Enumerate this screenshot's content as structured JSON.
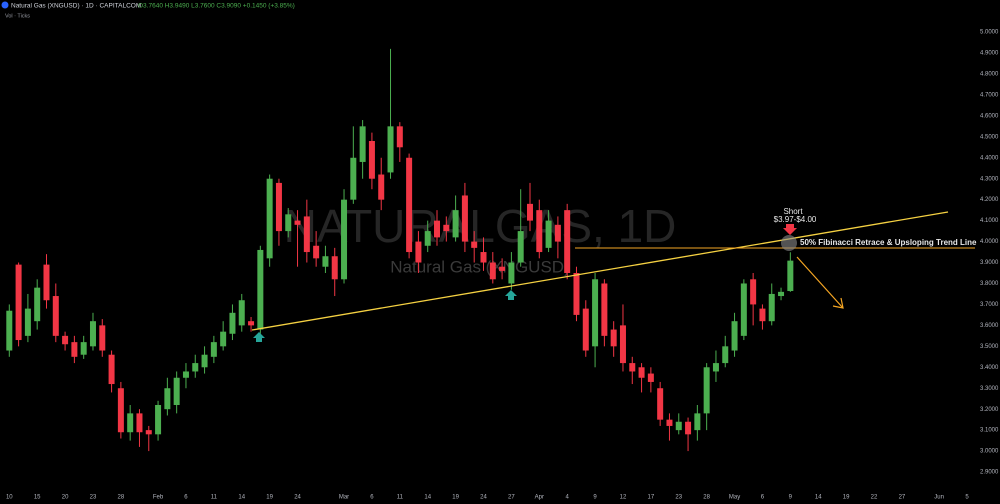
{
  "chart_data": {
    "type": "candlestick",
    "title": "Natural Gas (XNGUSD) · 1D · CAPITALCOM",
    "ohlc_summary": "O3.7640 H3.9490 L3.7600 C3.9090 +0.1450 (+3.85%)",
    "indicator_label": "Vol · Ticks",
    "watermark": "NATURALGAS, 1D",
    "watermark_subtitle": "Natural Gas (XNGUSD)",
    "annotations": [
      "Short",
      "$3.97-$4.00",
      "50% Fibinacci Retrace & Upsloping Trend Line"
    ],
    "up_color": "#4caf50",
    "down_color": "#f23645",
    "grid": false,
    "x": [
      0,
      1,
      2,
      3,
      4,
      5,
      6,
      7,
      8,
      9,
      10,
      11,
      12,
      13,
      14,
      15,
      16,
      17,
      18,
      19,
      20,
      21,
      22,
      23,
      24,
      25,
      26,
      27,
      28,
      29,
      30,
      31,
      32,
      33,
      34,
      35,
      36,
      37,
      38,
      39,
      40,
      41,
      42,
      43,
      44,
      45,
      46,
      47,
      48,
      49,
      50,
      51,
      52,
      53,
      54,
      55,
      56,
      57,
      58,
      59,
      60,
      61,
      62,
      63,
      64,
      65,
      66,
      67,
      68,
      69,
      70,
      71,
      72,
      73,
      74,
      75,
      76,
      77,
      78,
      79,
      80,
      81,
      82,
      83,
      84
    ],
    "open": [
      3.48,
      3.89,
      3.55,
      3.62,
      3.89,
      3.74,
      3.55,
      3.52,
      3.46,
      3.5,
      3.6,
      3.46,
      3.3,
      3.09,
      3.18,
      3.1,
      3.08,
      3.2,
      3.22,
      3.35,
      3.38,
      3.4,
      3.45,
      3.5,
      3.56,
      3.6,
      3.62,
      3.58,
      3.92,
      4.28,
      4.05,
      4.1,
      4.12,
      3.98,
      3.88,
      3.93,
      3.82,
      4.2,
      4.38,
      4.48,
      4.32,
      4.33,
      4.55,
      4.4,
      4.0,
      3.98,
      4.1,
      4.08,
      4.02,
      4.22,
      4.0,
      3.95,
      3.9,
      3.88,
      3.8,
      3.9,
      4.18,
      4.15,
      3.97,
      4.08,
      4.15,
      3.85,
      3.68,
      3.5,
      3.8,
      3.58,
      3.6,
      3.42,
      3.4,
      3.37,
      3.3,
      3.15,
      3.1,
      3.14,
      3.1,
      3.18,
      3.38,
      3.42,
      3.48,
      3.55,
      3.82,
      3.68,
      3.62,
      3.74,
      3.764
    ],
    "high": [
      3.7,
      3.9,
      3.75,
      3.82,
      3.94,
      3.8,
      3.57,
      3.55,
      3.55,
      3.66,
      3.63,
      3.48,
      3.33,
      3.22,
      3.2,
      3.12,
      3.24,
      3.35,
      3.38,
      3.42,
      3.46,
      3.5,
      3.55,
      3.62,
      3.7,
      3.75,
      3.64,
      3.98,
      4.32,
      4.3,
      4.16,
      4.15,
      4.2,
      4.05,
      3.98,
      3.97,
      4.25,
      4.55,
      4.58,
      4.52,
      4.4,
      4.92,
      4.57,
      4.42,
      4.05,
      4.1,
      4.15,
      4.12,
      4.22,
      4.28,
      4.05,
      4.02,
      3.95,
      3.92,
      3.95,
      4.25,
      4.28,
      4.2,
      4.15,
      4.12,
      4.18,
      3.88,
      3.72,
      3.85,
      3.82,
      3.62,
      3.7,
      3.45,
      3.42,
      3.4,
      3.33,
      3.18,
      3.18,
      3.16,
      3.22,
      3.42,
      3.48,
      3.55,
      3.66,
      3.82,
      3.85,
      3.7,
      3.8,
      3.78,
      3.949
    ],
    "low": [
      3.45,
      3.5,
      3.52,
      3.58,
      3.68,
      3.52,
      3.48,
      3.42,
      3.44,
      3.48,
      3.45,
      3.28,
      3.06,
      3.05,
      3.02,
      3.0,
      3.05,
      3.17,
      3.18,
      3.3,
      3.35,
      3.37,
      3.42,
      3.48,
      3.53,
      3.57,
      3.57,
      3.56,
      3.88,
      3.98,
      4.02,
      3.88,
      3.9,
      3.88,
      3.85,
      3.74,
      3.8,
      4.18,
      4.3,
      4.25,
      4.15,
      4.3,
      4.38,
      3.92,
      3.85,
      3.95,
      3.98,
      4.0,
      4.0,
      3.95,
      3.9,
      3.86,
      3.8,
      3.82,
      3.77,
      3.88,
      4.05,
      3.92,
      3.95,
      3.92,
      3.82,
      3.62,
      3.45,
      3.4,
      3.5,
      3.45,
      3.38,
      3.32,
      3.28,
      3.28,
      3.12,
      3.05,
      3.08,
      3.0,
      3.05,
      3.1,
      3.33,
      3.4,
      3.45,
      3.53,
      3.6,
      3.58,
      3.6,
      3.72,
      3.76
    ],
    "close": [
      3.67,
      3.53,
      3.68,
      3.78,
      3.72,
      3.55,
      3.51,
      3.45,
      3.52,
      3.62,
      3.48,
      3.32,
      3.09,
      3.18,
      3.09,
      3.08,
      3.22,
      3.3,
      3.35,
      3.38,
      3.42,
      3.46,
      3.52,
      3.57,
      3.66,
      3.72,
      3.6,
      3.96,
      4.3,
      4.05,
      4.13,
      4.08,
      3.95,
      3.92,
      3.93,
      3.82,
      4.2,
      4.4,
      4.55,
      4.3,
      4.2,
      4.55,
      4.45,
      3.95,
      3.9,
      4.05,
      4.02,
      4.05,
      4.15,
      4.0,
      3.97,
      3.9,
      3.82,
      3.86,
      3.9,
      4.05,
      4.1,
      3.95,
      4.1,
      4.0,
      3.85,
      3.65,
      3.48,
      3.82,
      3.55,
      3.5,
      3.42,
      3.38,
      3.35,
      3.33,
      3.15,
      3.12,
      3.14,
      3.08,
      3.18,
      3.4,
      3.42,
      3.5,
      3.62,
      3.8,
      3.7,
      3.62,
      3.75,
      3.76,
      3.909
    ],
    "xlim": [
      -1,
      103
    ],
    "xticks": [
      {
        "value": 0,
        "label": "10"
      },
      {
        "value": 3,
        "label": "15"
      },
      {
        "value": 6,
        "label": "20"
      },
      {
        "value": 9,
        "label": "23"
      },
      {
        "value": 12,
        "label": "28"
      },
      {
        "value": 16,
        "label": "Feb"
      },
      {
        "value": 19,
        "label": "6"
      },
      {
        "value": 22,
        "label": "11"
      },
      {
        "value": 25,
        "label": "14"
      },
      {
        "value": 28,
        "label": "19"
      },
      {
        "value": 31,
        "label": "24"
      },
      {
        "value": 36,
        "label": "Mar"
      },
      {
        "value": 39,
        "label": "6"
      },
      {
        "value": 42,
        "label": "11"
      },
      {
        "value": 45,
        "label": "14"
      },
      {
        "value": 48,
        "label": "19"
      },
      {
        "value": 51,
        "label": "24"
      },
      {
        "value": 54,
        "label": "27"
      },
      {
        "value": 57,
        "label": "Apr"
      },
      {
        "value": 60,
        "label": "4"
      },
      {
        "value": 63,
        "label": "9"
      },
      {
        "value": 66,
        "label": "12"
      },
      {
        "value": 69,
        "label": "17"
      },
      {
        "value": 72,
        "label": "23"
      },
      {
        "value": 75,
        "label": "28"
      },
      {
        "value": 78,
        "label": "May"
      },
      {
        "value": 81,
        "label": "6"
      },
      {
        "value": 84,
        "label": "9"
      },
      {
        "value": 87,
        "label": "14"
      },
      {
        "value": 90,
        "label": "19"
      },
      {
        "value": 93,
        "label": "22"
      },
      {
        "value": 96,
        "label": "27"
      },
      {
        "value": 100,
        "label": "Jun"
      },
      {
        "value": 103,
        "label": "5"
      }
    ],
    "ylim": [
      2.862,
      5.153
    ],
    "yticks": [
      {
        "value": 2.9,
        "label": "2.9000"
      },
      {
        "value": 3.0,
        "label": "3.0000"
      },
      {
        "value": 3.1,
        "label": "3.1000"
      },
      {
        "value": 3.2,
        "label": "3.2000"
      },
      {
        "value": 3.3,
        "label": "3.3000"
      },
      {
        "value": 3.4,
        "label": "3.4000"
      },
      {
        "value": 3.5,
        "label": "3.5000"
      },
      {
        "value": 3.6,
        "label": "3.6000"
      },
      {
        "value": 3.7,
        "label": "3.7000"
      },
      {
        "value": 3.8,
        "label": "3.8000"
      },
      {
        "value": 3.9,
        "label": "3.9000"
      },
      {
        "value": 4.0,
        "label": "4.0000"
      },
      {
        "value": 4.1,
        "label": "4.1000"
      },
      {
        "value": 4.2,
        "label": "4.2000"
      },
      {
        "value": 4.3,
        "label": "4.3000"
      },
      {
        "value": 4.4,
        "label": "4.4000"
      },
      {
        "value": 4.5,
        "label": "4.5000"
      },
      {
        "value": 4.6,
        "label": "4.6000"
      },
      {
        "value": 4.7,
        "label": "4.7000"
      },
      {
        "value": 4.8,
        "label": "4.8000"
      },
      {
        "value": 4.9,
        "label": "4.9000"
      },
      {
        "value": 5.0,
        "label": "5.0000"
      }
    ]
  }
}
